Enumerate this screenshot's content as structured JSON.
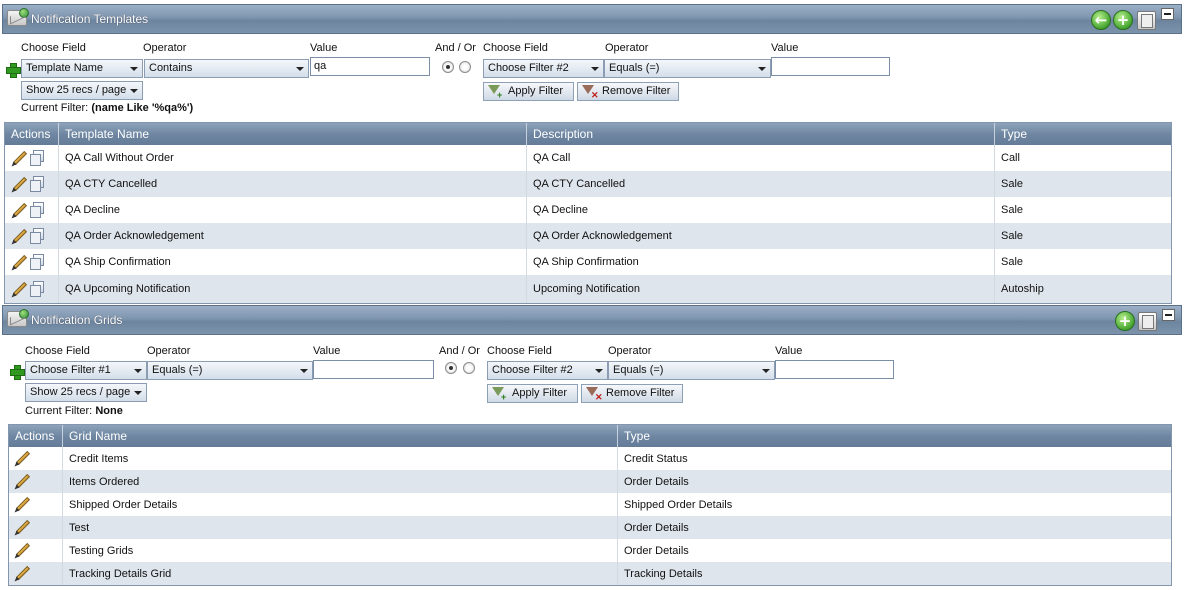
{
  "templates_panel": {
    "title": "Notification Templates",
    "header_icons": [
      "back-icon",
      "add-icon",
      "copy-icon",
      "minimize-icon"
    ],
    "filter1": {
      "choose_field_label": "Choose Field",
      "operator_label": "Operator",
      "value_label": "Value",
      "field": "Template Name",
      "operator": "Contains",
      "value": "qa"
    },
    "and_or_label": "And / Or",
    "filter2": {
      "choose_field_label": "Choose Field",
      "operator_label": "Operator",
      "value_label": "Value",
      "field": "Choose Filter #2",
      "operator": "Equals (=)",
      "value": ""
    },
    "page_size": "Show 25 recs / page",
    "current_filter_label": "Current Filter:",
    "current_filter_value": "(name Like '%qa%')",
    "apply_filter": "Apply Filter",
    "remove_filter": "Remove Filter",
    "columns": [
      "Actions",
      "Template Name",
      "Description",
      "Type"
    ],
    "rows": [
      {
        "name": "QA Call Without Order",
        "description": "QA Call",
        "type": "Call"
      },
      {
        "name": "QA CTY Cancelled",
        "description": "QA CTY Cancelled",
        "type": "Sale"
      },
      {
        "name": "QA Decline",
        "description": "QA Decline",
        "type": "Sale"
      },
      {
        "name": "QA Order Acknowledgement",
        "description": "QA Order Acknowledgement",
        "type": "Sale"
      },
      {
        "name": "QA Ship Confirmation",
        "description": "QA Ship Confirmation",
        "type": "Sale"
      },
      {
        "name": "QA Upcoming Notification",
        "description": "Upcoming Notification",
        "type": "Autoship"
      }
    ]
  },
  "grids_panel": {
    "title": "Notification Grids",
    "header_icons": [
      "add-icon",
      "copy-icon",
      "minimize-icon"
    ],
    "filter1": {
      "choose_field_label": "Choose Field",
      "operator_label": "Operator",
      "value_label": "Value",
      "field": "Choose Filter #1",
      "operator": "Equals (=)",
      "value": ""
    },
    "and_or_label": "And / Or",
    "filter2": {
      "choose_field_label": "Choose Field",
      "operator_label": "Operator",
      "value_label": "Value",
      "field": "Choose Filter #2",
      "operator": "Equals (=)",
      "value": ""
    },
    "page_size": "Show 25 recs / page",
    "current_filter_label": "Current Filter:",
    "current_filter_value": "None",
    "apply_filter": "Apply Filter",
    "remove_filter": "Remove Filter",
    "columns": [
      "Actions",
      "Grid Name",
      "Type"
    ],
    "rows": [
      {
        "name": "Credit Items",
        "type": "Credit Status"
      },
      {
        "name": "Items Ordered",
        "type": "Order Details"
      },
      {
        "name": "Shipped Order Details",
        "type": "Shipped Order Details"
      },
      {
        "name": "Test",
        "type": "Order Details"
      },
      {
        "name": "Testing Grids",
        "type": "Order Details"
      },
      {
        "name": "Tracking Details Grid",
        "type": "Tracking Details"
      }
    ]
  },
  "colors": {
    "header_bar": "#7e95ae",
    "grid_header": "#6f87a2",
    "alt_row": "#dfe5ec",
    "add_green": "#45a52f"
  }
}
